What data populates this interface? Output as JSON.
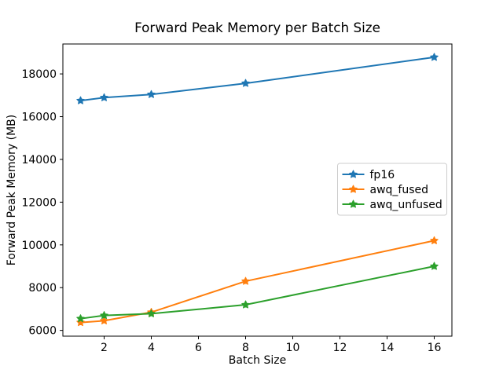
{
  "figure": {
    "background": "#ffffff",
    "text_color": "#000000",
    "spine_color": "#000000",
    "legend_border_color": "#cccccc",
    "legend_face_color": "#ffffff"
  },
  "chart_data": {
    "type": "line",
    "title": "Forward Peak Memory per Batch Size",
    "xlabel": "Batch Size",
    "ylabel": "Forward Peak Memory (MB)",
    "x": [
      1,
      2,
      4,
      8,
      16
    ],
    "series": [
      {
        "name": "fp16",
        "color": "#1f77b4",
        "marker": "star",
        "values": [
          16750,
          16890,
          17040,
          17560,
          18780
        ]
      },
      {
        "name": "awq_fused",
        "color": "#ff7f0e",
        "marker": "star",
        "values": [
          6370,
          6450,
          6850,
          8300,
          10200
        ]
      },
      {
        "name": "awq_unfused",
        "color": "#2ca02c",
        "marker": "star",
        "values": [
          6550,
          6700,
          6780,
          7200,
          9000
        ]
      }
    ],
    "xlim": [
      0.25,
      16.75
    ],
    "ylim": [
      5730,
      19400
    ],
    "xticks": [
      2,
      4,
      6,
      8,
      10,
      12,
      14,
      16
    ],
    "yticks": [
      6000,
      8000,
      10000,
      12000,
      14000,
      16000,
      18000
    ],
    "grid": false,
    "legend": {
      "position": "center right",
      "entries": [
        "fp16",
        "awq_fused",
        "awq_unfused"
      ]
    }
  }
}
